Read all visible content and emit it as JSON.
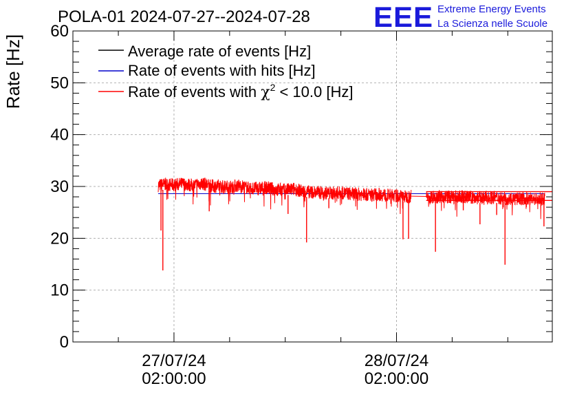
{
  "chart_data": {
    "type": "line",
    "title": "POLA-01 2024-07-27--2024-07-28",
    "ylabel": "Rate [Hz]",
    "xlabel": "",
    "ylim": [
      0,
      60
    ],
    "xlim_hours": [
      -10.9,
      40.8
    ],
    "grid": true,
    "legend_position": "top-left",
    "y_ticks": [
      "0",
      "10",
      "20",
      "30",
      "40",
      "50",
      "60"
    ],
    "x_ticks": [
      {
        "hours": 0,
        "date": "27/07/24",
        "time": "02:00:00"
      },
      {
        "hours": 24,
        "date": "28/07/24",
        "time": "02:00:00"
      }
    ],
    "legend": [
      {
        "label": "Average rate of events [Hz]",
        "color": "#000000"
      },
      {
        "label": "Rate of events with hits [Hz]",
        "color": "#0000cc"
      },
      {
        "label_prefix": "Rate of events with ",
        "chi_symbol": "χ",
        "chi_superscript": "2",
        "label_suffix": " < 10.0 [Hz]",
        "color": "#ff0000"
      }
    ],
    "series": [
      {
        "name": "Rate of events with χ2 < 10.0 [Hz]",
        "color": "#ff0000",
        "x_hours": [
          -1.7,
          -1,
          0,
          1,
          2,
          3,
          4,
          5,
          6,
          7,
          8,
          9,
          10,
          11,
          12,
          13,
          14,
          15,
          16,
          17,
          18,
          19,
          20,
          21,
          22,
          23,
          24,
          25,
          26,
          27,
          28,
          29,
          30,
          31,
          32,
          33,
          34,
          35,
          36,
          37,
          38,
          39,
          40,
          41.2,
          42.0
        ],
        "values": [
          30.2,
          30.4,
          30.3,
          30.5,
          30.2,
          30.6,
          30.1,
          30.0,
          29.9,
          30.2,
          29.7,
          29.6,
          29.8,
          29.4,
          29.3,
          29.5,
          29.0,
          28.9,
          28.8,
          28.7,
          28.8,
          28.6,
          28.5,
          28.4,
          28.5,
          28.3,
          28.2,
          28.0,
          28.2,
          28.1,
          28.0,
          28.1,
          27.9,
          28.0,
          27.9,
          27.8,
          27.9,
          27.8,
          27.7,
          27.6,
          27.7,
          27.6,
          27.5,
          27.5,
          27.4
        ],
        "dips": [
          {
            "x_hours": -1.2,
            "value": 13.8
          },
          {
            "x_hours": -1.4,
            "value": 21.5
          },
          {
            "x_hours": 3.8,
            "value": 25.2
          },
          {
            "x_hours": 12.3,
            "value": 24.7
          },
          {
            "x_hours": 14.3,
            "value": 19.2
          },
          {
            "x_hours": 16.7,
            "value": 25.8
          },
          {
            "x_hours": 24.7,
            "value": 19.8
          },
          {
            "x_hours": 25.3,
            "value": 19.9
          },
          {
            "x_hours": 28.2,
            "value": 17.4
          },
          {
            "x_hours": 31.2,
            "value": 25.4
          },
          {
            "x_hours": 33.0,
            "value": 22.7
          },
          {
            "x_hours": 34.8,
            "value": 24.5
          },
          {
            "x_hours": 35.7,
            "value": 14.9
          },
          {
            "x_hours": 38.0,
            "value": 26.0
          },
          {
            "x_hours": 39.9,
            "value": 22.3
          }
        ],
        "gap_hours": [
          25.6,
          27.2
        ]
      },
      {
        "name": "Rate of events with hits [Hz]",
        "color": "#0000cc",
        "x_hours": [
          -1.7,
          40.0
        ],
        "values": [
          28.6,
          28.6
        ],
        "hidden_under_red": true
      },
      {
        "name": "Average rate of events [Hz]",
        "color": "#000000",
        "x_hours": [
          -1.7,
          40.0
        ],
        "values": [
          28.6,
          28.6
        ],
        "hidden_under_red": true
      }
    ],
    "reference_lines": [
      {
        "value": 29.0,
        "from_hours": 27.2,
        "color": "#ff0000"
      },
      {
        "value": 27.3,
        "from_hours": 27.2,
        "color": "#ff0000"
      }
    ]
  },
  "logo": {
    "mark": "EEE",
    "line1": "Extreme Energy Events",
    "line2": "La Scienza nelle Scuole",
    "color": "#1a1adb"
  }
}
